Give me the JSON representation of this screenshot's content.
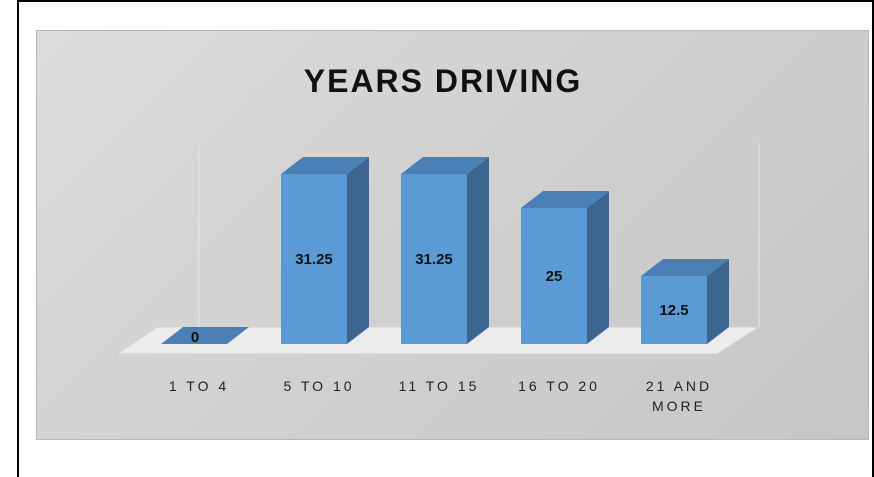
{
  "chart_data": {
    "type": "bar",
    "title": "YEARS DRIVING",
    "categories": [
      "1 TO 4",
      "5 TO 10",
      "11 TO 15",
      "16 TO 20",
      "21 AND MORE"
    ],
    "category_lines": [
      [
        "1 TO 4"
      ],
      [
        "5 TO 10"
      ],
      [
        "11 TO 15"
      ],
      [
        "16 TO 20"
      ],
      [
        "21 AND",
        "MORE"
      ]
    ],
    "values": [
      0,
      31.25,
      31.25,
      25,
      12.5
    ],
    "data_labels": [
      "0",
      "31.25",
      "31.25",
      "25",
      "12.5"
    ],
    "style": "3d-column",
    "grid": false,
    "legend": "none",
    "colors": {
      "front": "#5b9bd5",
      "side": "#3c6590",
      "top": "#4a80b5",
      "floor": "#ececec"
    }
  }
}
